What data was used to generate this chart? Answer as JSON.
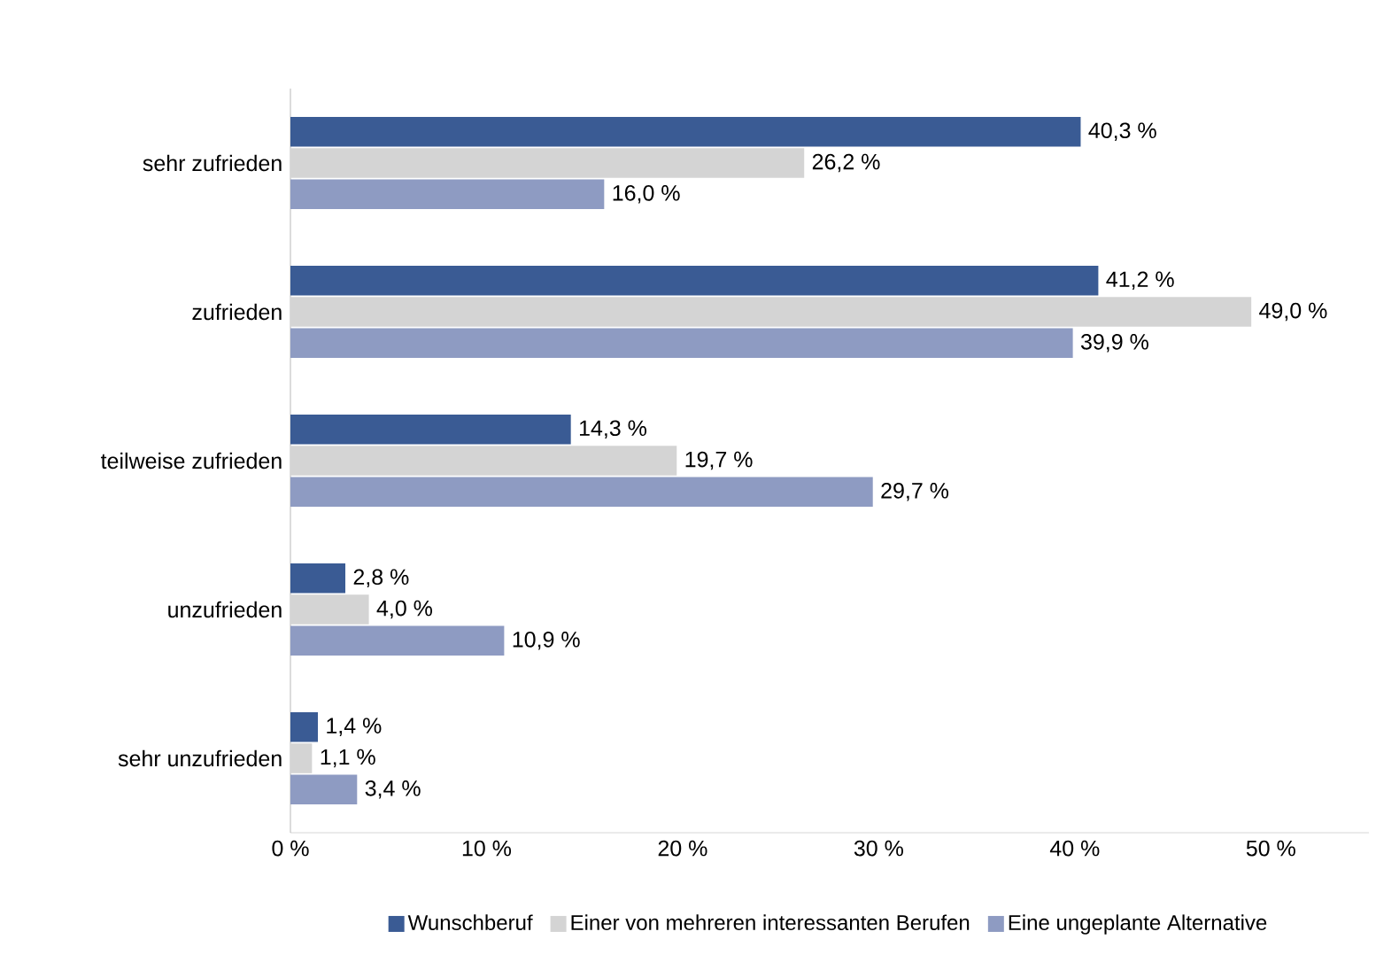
{
  "chart_data": {
    "type": "bar",
    "orientation": "horizontal",
    "categories": [
      "sehr zufrieden",
      "zufrieden",
      "teilweise zufrieden",
      "unzufrieden",
      "sehr unzufrieden"
    ],
    "series": [
      {
        "name": "Wunschberuf",
        "color": "#3a5b94",
        "values": [
          40.3,
          41.2,
          14.3,
          2.8,
          1.4
        ],
        "value_labels": [
          "40,3 %",
          "41,2 %",
          "14,3 %",
          "2,8 %",
          "1,4 %"
        ]
      },
      {
        "name": "Einer von mehreren interessanten Berufen",
        "color": "#d4d4d4",
        "values": [
          26.2,
          49.0,
          19.7,
          4.0,
          1.1
        ],
        "value_labels": [
          "26,2 %",
          "49,0 %",
          "19,7 %",
          "4,0 %",
          "1,1 %"
        ]
      },
      {
        "name": "Eine ungeplante Alternative",
        "color": "#8e9bc2",
        "values": [
          16.0,
          39.9,
          29.7,
          10.9,
          3.4
        ],
        "value_labels": [
          "16,0 %",
          "39,9 %",
          "29,7 %",
          "10,9 %",
          "3,4 %"
        ]
      }
    ],
    "xlim": [
      0,
      55
    ],
    "xticks": [
      {
        "value": 0,
        "label": "0 %"
      },
      {
        "value": 10,
        "label": "10 %"
      },
      {
        "value": 20,
        "label": "20 %"
      },
      {
        "value": 30,
        "label": "30 %"
      },
      {
        "value": 40,
        "label": "40 %"
      },
      {
        "value": 50,
        "label": "50 %"
      }
    ],
    "legend": "bottom"
  }
}
